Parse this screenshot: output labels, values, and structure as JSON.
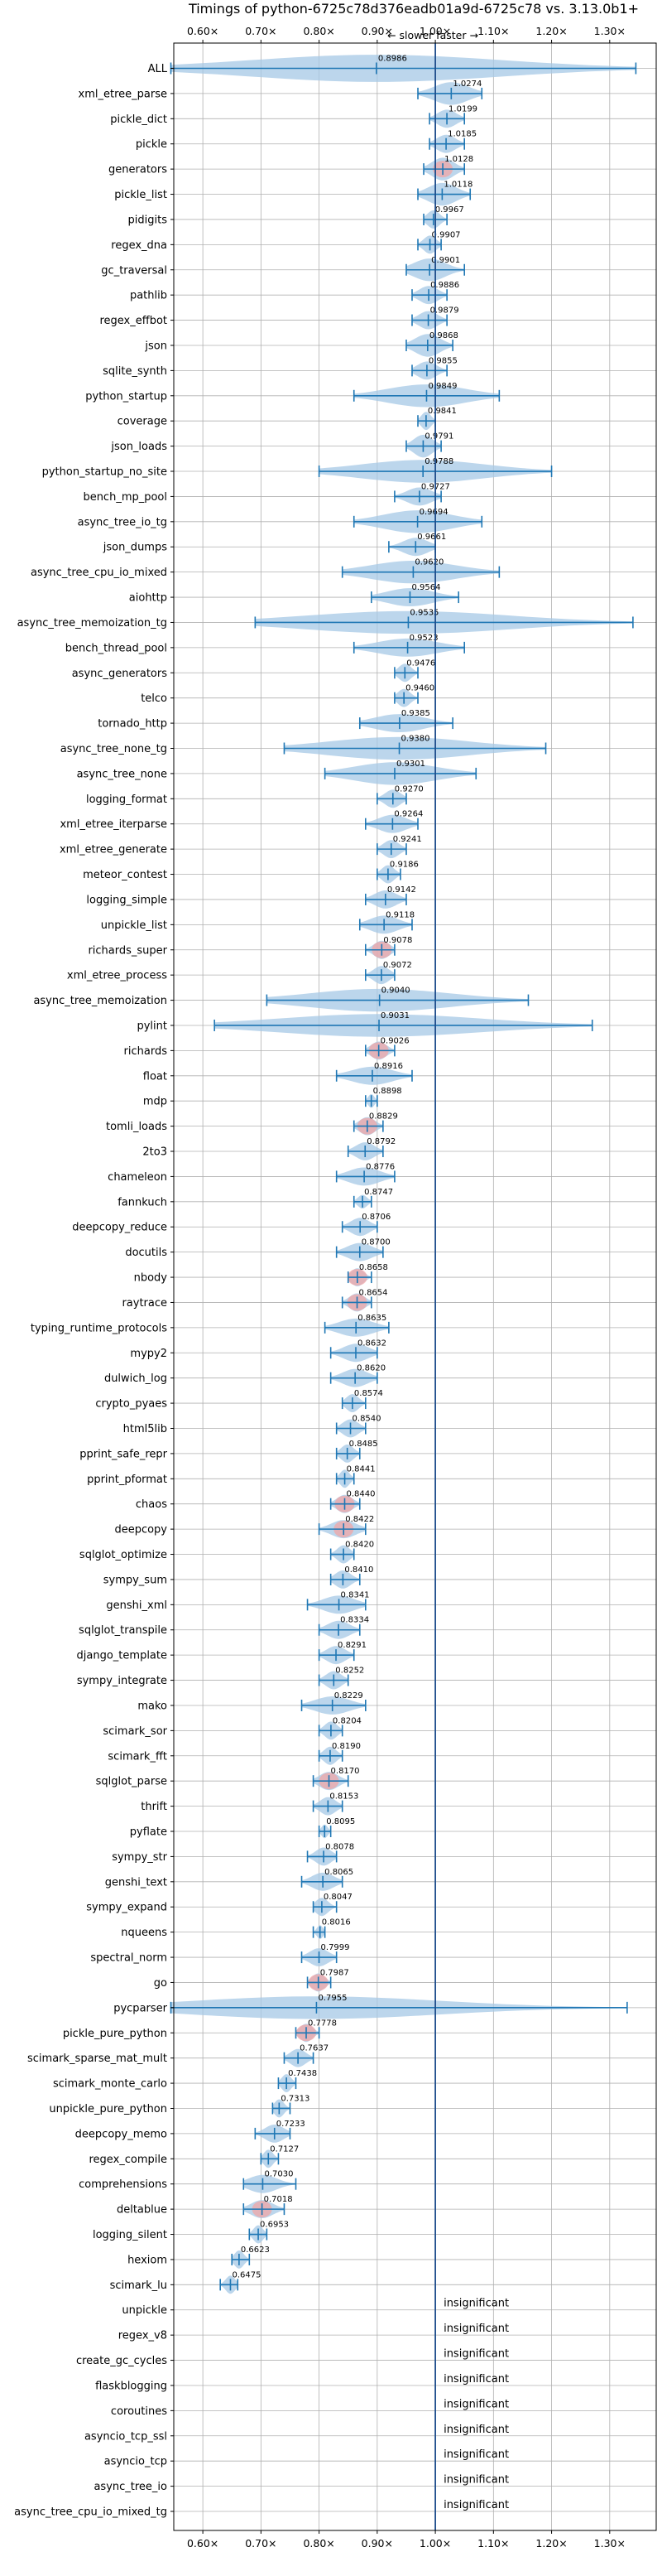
{
  "chart_data": {
    "type": "violin",
    "title": "Timings of python-6725c78d376eadb01a9d-6725c78 vs. 3.13.0b1+",
    "subtitle": "← slower   faster →",
    "xlim": [
      0.55,
      1.38
    ],
    "x_ticks": [
      0.6,
      0.7,
      0.8,
      0.9,
      1.0,
      1.1,
      1.2,
      1.3
    ],
    "x_tick_labels": [
      "0.60×",
      "0.70×",
      "0.80×",
      "0.90×",
      "1.00×",
      "1.10×",
      "1.20×",
      "1.30×"
    ],
    "reference_line": 1.0,
    "grid": true,
    "colors": {
      "violin": "#a6c8e6",
      "errorbar": "#1f77b4",
      "refline": "#1f4e8c",
      "highlight": "#f4a3a3",
      "grid": "#b0b0b0"
    },
    "benchmarks": [
      {
        "name": "ALL",
        "value": 0.8986,
        "lo": 0.545,
        "hi": 1.345,
        "width": 0.6,
        "highlight": false
      },
      {
        "name": "xml_etree_parse",
        "value": 1.0274,
        "lo": 0.97,
        "hi": 1.08,
        "width": 0.5,
        "highlight": false
      },
      {
        "name": "pickle_dict",
        "value": 1.0199,
        "lo": 0.99,
        "hi": 1.05,
        "width": 0.4,
        "highlight": false
      },
      {
        "name": "pickle",
        "value": 1.0185,
        "lo": 0.99,
        "hi": 1.05,
        "width": 0.4,
        "highlight": false
      },
      {
        "name": "generators",
        "value": 1.0128,
        "lo": 0.98,
        "hi": 1.05,
        "width": 0.5,
        "highlight": true
      },
      {
        "name": "pickle_list",
        "value": 1.0118,
        "lo": 0.97,
        "hi": 1.06,
        "width": 0.5,
        "highlight": false
      },
      {
        "name": "pidigits",
        "value": 0.9967,
        "lo": 0.98,
        "hi": 1.02,
        "width": 0.4,
        "highlight": false
      },
      {
        "name": "regex_dna",
        "value": 0.9907,
        "lo": 0.97,
        "hi": 1.01,
        "width": 0.4,
        "highlight": false
      },
      {
        "name": "gc_traversal",
        "value": 0.9901,
        "lo": 0.95,
        "hi": 1.05,
        "width": 0.5,
        "highlight": false
      },
      {
        "name": "pathlib",
        "value": 0.9886,
        "lo": 0.96,
        "hi": 1.02,
        "width": 0.4,
        "highlight": false
      },
      {
        "name": "regex_effbot",
        "value": 0.9879,
        "lo": 0.96,
        "hi": 1.02,
        "width": 0.4,
        "highlight": false
      },
      {
        "name": "json",
        "value": 0.9868,
        "lo": 0.95,
        "hi": 1.03,
        "width": 0.5,
        "highlight": false
      },
      {
        "name": "sqlite_synth",
        "value": 0.9855,
        "lo": 0.96,
        "hi": 1.02,
        "width": 0.4,
        "highlight": false
      },
      {
        "name": "python_startup",
        "value": 0.9849,
        "lo": 0.86,
        "hi": 1.11,
        "width": 0.5,
        "highlight": false
      },
      {
        "name": "coverage",
        "value": 0.9841,
        "lo": 0.97,
        "hi": 1.0,
        "width": 0.4,
        "highlight": false
      },
      {
        "name": "json_loads",
        "value": 0.9791,
        "lo": 0.95,
        "hi": 1.01,
        "width": 0.5,
        "highlight": false
      },
      {
        "name": "python_startup_no_site",
        "value": 0.9788,
        "lo": 0.8,
        "hi": 1.2,
        "width": 0.5,
        "highlight": false
      },
      {
        "name": "bench_mp_pool",
        "value": 0.9727,
        "lo": 0.93,
        "hi": 1.01,
        "width": 0.4,
        "highlight": false
      },
      {
        "name": "async_tree_io_tg",
        "value": 0.9694,
        "lo": 0.86,
        "hi": 1.08,
        "width": 0.5,
        "highlight": false
      },
      {
        "name": "json_dumps",
        "value": 0.9661,
        "lo": 0.92,
        "hi": 1.0,
        "width": 0.4,
        "highlight": false
      },
      {
        "name": "async_tree_cpu_io_mixed",
        "value": 0.962,
        "lo": 0.84,
        "hi": 1.11,
        "width": 0.5,
        "highlight": false
      },
      {
        "name": "aiohttp",
        "value": 0.9564,
        "lo": 0.89,
        "hi": 1.04,
        "width": 0.4,
        "highlight": false
      },
      {
        "name": "async_tree_memoization_tg",
        "value": 0.9535,
        "lo": 0.69,
        "hi": 1.34,
        "width": 0.5,
        "highlight": false
      },
      {
        "name": "bench_thread_pool",
        "value": 0.9523,
        "lo": 0.86,
        "hi": 1.05,
        "width": 0.4,
        "highlight": false
      },
      {
        "name": "async_generators",
        "value": 0.9476,
        "lo": 0.93,
        "hi": 0.97,
        "width": 0.4,
        "highlight": false
      },
      {
        "name": "telco",
        "value": 0.946,
        "lo": 0.93,
        "hi": 0.97,
        "width": 0.4,
        "highlight": false
      },
      {
        "name": "tornado_http",
        "value": 0.9385,
        "lo": 0.87,
        "hi": 1.03,
        "width": 0.4,
        "highlight": false
      },
      {
        "name": "async_tree_none_tg",
        "value": 0.938,
        "lo": 0.74,
        "hi": 1.19,
        "width": 0.5,
        "highlight": false
      },
      {
        "name": "async_tree_none",
        "value": 0.9301,
        "lo": 0.81,
        "hi": 1.07,
        "width": 0.5,
        "highlight": false
      },
      {
        "name": "logging_format",
        "value": 0.927,
        "lo": 0.9,
        "hi": 0.95,
        "width": 0.4,
        "highlight": false
      },
      {
        "name": "xml_etree_iterparse",
        "value": 0.9264,
        "lo": 0.88,
        "hi": 0.97,
        "width": 0.4,
        "highlight": false
      },
      {
        "name": "xml_etree_generate",
        "value": 0.9241,
        "lo": 0.9,
        "hi": 0.95,
        "width": 0.4,
        "highlight": false
      },
      {
        "name": "meteor_contest",
        "value": 0.9186,
        "lo": 0.9,
        "hi": 0.94,
        "width": 0.4,
        "highlight": false
      },
      {
        "name": "logging_simple",
        "value": 0.9142,
        "lo": 0.88,
        "hi": 0.95,
        "width": 0.4,
        "highlight": false
      },
      {
        "name": "unpickle_list",
        "value": 0.9118,
        "lo": 0.87,
        "hi": 0.96,
        "width": 0.4,
        "highlight": false
      },
      {
        "name": "richards_super",
        "value": 0.9078,
        "lo": 0.88,
        "hi": 0.93,
        "width": 0.4,
        "highlight": true
      },
      {
        "name": "xml_etree_process",
        "value": 0.9072,
        "lo": 0.88,
        "hi": 0.93,
        "width": 0.4,
        "highlight": false
      },
      {
        "name": "async_tree_memoization",
        "value": 0.904,
        "lo": 0.71,
        "hi": 1.16,
        "width": 0.5,
        "highlight": false
      },
      {
        "name": "pylint",
        "value": 0.9031,
        "lo": 0.62,
        "hi": 1.27,
        "width": 0.5,
        "highlight": false
      },
      {
        "name": "richards",
        "value": 0.9026,
        "lo": 0.88,
        "hi": 0.93,
        "width": 0.4,
        "highlight": true
      },
      {
        "name": "float",
        "value": 0.8916,
        "lo": 0.83,
        "hi": 0.96,
        "width": 0.4,
        "highlight": false
      },
      {
        "name": "mdp",
        "value": 0.8898,
        "lo": 0.88,
        "hi": 0.9,
        "width": 0.3,
        "highlight": false
      },
      {
        "name": "tomli_loads",
        "value": 0.8829,
        "lo": 0.86,
        "hi": 0.91,
        "width": 0.4,
        "highlight": true
      },
      {
        "name": "2to3",
        "value": 0.8792,
        "lo": 0.85,
        "hi": 0.91,
        "width": 0.4,
        "highlight": false
      },
      {
        "name": "chameleon",
        "value": 0.8776,
        "lo": 0.83,
        "hi": 0.93,
        "width": 0.4,
        "highlight": false
      },
      {
        "name": "fannkuch",
        "value": 0.8747,
        "lo": 0.86,
        "hi": 0.89,
        "width": 0.3,
        "highlight": false
      },
      {
        "name": "deepcopy_reduce",
        "value": 0.8706,
        "lo": 0.84,
        "hi": 0.9,
        "width": 0.4,
        "highlight": false
      },
      {
        "name": "docutils",
        "value": 0.87,
        "lo": 0.83,
        "hi": 0.91,
        "width": 0.4,
        "highlight": false
      },
      {
        "name": "nbody",
        "value": 0.8658,
        "lo": 0.85,
        "hi": 0.89,
        "width": 0.4,
        "highlight": true
      },
      {
        "name": "raytrace",
        "value": 0.8654,
        "lo": 0.84,
        "hi": 0.89,
        "width": 0.4,
        "highlight": true
      },
      {
        "name": "typing_runtime_protocols",
        "value": 0.8635,
        "lo": 0.81,
        "hi": 0.92,
        "width": 0.4,
        "highlight": false
      },
      {
        "name": "mypy2",
        "value": 0.8632,
        "lo": 0.82,
        "hi": 0.9,
        "width": 0.4,
        "highlight": false
      },
      {
        "name": "dulwich_log",
        "value": 0.862,
        "lo": 0.82,
        "hi": 0.9,
        "width": 0.4,
        "highlight": false
      },
      {
        "name": "crypto_pyaes",
        "value": 0.8574,
        "lo": 0.84,
        "hi": 0.88,
        "width": 0.4,
        "highlight": false
      },
      {
        "name": "html5lib",
        "value": 0.854,
        "lo": 0.83,
        "hi": 0.88,
        "width": 0.4,
        "highlight": false
      },
      {
        "name": "pprint_safe_repr",
        "value": 0.8485,
        "lo": 0.83,
        "hi": 0.87,
        "width": 0.4,
        "highlight": false
      },
      {
        "name": "pprint_pformat",
        "value": 0.8441,
        "lo": 0.83,
        "hi": 0.86,
        "width": 0.4,
        "highlight": false
      },
      {
        "name": "chaos",
        "value": 0.844,
        "lo": 0.82,
        "hi": 0.87,
        "width": 0.4,
        "highlight": true
      },
      {
        "name": "deepcopy",
        "value": 0.8422,
        "lo": 0.8,
        "hi": 0.88,
        "width": 0.4,
        "highlight": true
      },
      {
        "name": "sqlglot_optimize",
        "value": 0.842,
        "lo": 0.82,
        "hi": 0.86,
        "width": 0.4,
        "highlight": false
      },
      {
        "name": "sympy_sum",
        "value": 0.841,
        "lo": 0.82,
        "hi": 0.87,
        "width": 0.4,
        "highlight": false
      },
      {
        "name": "genshi_xml",
        "value": 0.8341,
        "lo": 0.78,
        "hi": 0.88,
        "width": 0.4,
        "highlight": false
      },
      {
        "name": "sqlglot_transpile",
        "value": 0.8334,
        "lo": 0.8,
        "hi": 0.87,
        "width": 0.4,
        "highlight": false
      },
      {
        "name": "django_template",
        "value": 0.8291,
        "lo": 0.8,
        "hi": 0.86,
        "width": 0.4,
        "highlight": false
      },
      {
        "name": "sympy_integrate",
        "value": 0.8252,
        "lo": 0.8,
        "hi": 0.85,
        "width": 0.4,
        "highlight": false
      },
      {
        "name": "mako",
        "value": 0.8229,
        "lo": 0.77,
        "hi": 0.88,
        "width": 0.4,
        "highlight": false
      },
      {
        "name": "scimark_sor",
        "value": 0.8204,
        "lo": 0.8,
        "hi": 0.84,
        "width": 0.4,
        "highlight": false
      },
      {
        "name": "scimark_fft",
        "value": 0.819,
        "lo": 0.8,
        "hi": 0.84,
        "width": 0.4,
        "highlight": false
      },
      {
        "name": "sqlglot_parse",
        "value": 0.817,
        "lo": 0.79,
        "hi": 0.85,
        "width": 0.4,
        "highlight": true
      },
      {
        "name": "thrift",
        "value": 0.8153,
        "lo": 0.79,
        "hi": 0.84,
        "width": 0.4,
        "highlight": false
      },
      {
        "name": "pyflate",
        "value": 0.8095,
        "lo": 0.8,
        "hi": 0.82,
        "width": 0.3,
        "highlight": false
      },
      {
        "name": "sympy_str",
        "value": 0.8078,
        "lo": 0.78,
        "hi": 0.83,
        "width": 0.4,
        "highlight": false
      },
      {
        "name": "genshi_text",
        "value": 0.8065,
        "lo": 0.77,
        "hi": 0.84,
        "width": 0.4,
        "highlight": false
      },
      {
        "name": "sympy_expand",
        "value": 0.8047,
        "lo": 0.79,
        "hi": 0.83,
        "width": 0.4,
        "highlight": false
      },
      {
        "name": "nqueens",
        "value": 0.8016,
        "lo": 0.79,
        "hi": 0.81,
        "width": 0.3,
        "highlight": false
      },
      {
        "name": "spectral_norm",
        "value": 0.7999,
        "lo": 0.77,
        "hi": 0.83,
        "width": 0.4,
        "highlight": false
      },
      {
        "name": "go",
        "value": 0.7987,
        "lo": 0.78,
        "hi": 0.82,
        "width": 0.4,
        "highlight": true
      },
      {
        "name": "pycparser",
        "value": 0.7955,
        "lo": 0.545,
        "hi": 1.33,
        "width": 0.5,
        "highlight": false
      },
      {
        "name": "pickle_pure_python",
        "value": 0.7778,
        "lo": 0.76,
        "hi": 0.8,
        "width": 0.4,
        "highlight": true
      },
      {
        "name": "scimark_sparse_mat_mult",
        "value": 0.7637,
        "lo": 0.74,
        "hi": 0.79,
        "width": 0.4,
        "highlight": false
      },
      {
        "name": "scimark_monte_carlo",
        "value": 0.7438,
        "lo": 0.73,
        "hi": 0.76,
        "width": 0.4,
        "highlight": false
      },
      {
        "name": "unpickle_pure_python",
        "value": 0.7313,
        "lo": 0.72,
        "hi": 0.75,
        "width": 0.4,
        "highlight": false
      },
      {
        "name": "deepcopy_memo",
        "value": 0.7233,
        "lo": 0.69,
        "hi": 0.75,
        "width": 0.4,
        "highlight": false
      },
      {
        "name": "regex_compile",
        "value": 0.7127,
        "lo": 0.7,
        "hi": 0.73,
        "width": 0.4,
        "highlight": false
      },
      {
        "name": "comprehensions",
        "value": 0.703,
        "lo": 0.67,
        "hi": 0.76,
        "width": 0.4,
        "highlight": false
      },
      {
        "name": "deltablue",
        "value": 0.7018,
        "lo": 0.67,
        "hi": 0.74,
        "width": 0.4,
        "highlight": true
      },
      {
        "name": "logging_silent",
        "value": 0.6953,
        "lo": 0.68,
        "hi": 0.71,
        "width": 0.4,
        "highlight": false
      },
      {
        "name": "hexiom",
        "value": 0.6623,
        "lo": 0.65,
        "hi": 0.68,
        "width": 0.4,
        "highlight": false
      },
      {
        "name": "scimark_lu",
        "value": 0.6475,
        "lo": 0.63,
        "hi": 0.66,
        "width": 0.4,
        "highlight": false
      }
    ],
    "insignificant": [
      "unpickle",
      "regex_v8",
      "create_gc_cycles",
      "flaskblogging",
      "coroutines",
      "asyncio_tcp_ssl",
      "asyncio_tcp",
      "async_tree_io",
      "async_tree_cpu_io_mixed_tg"
    ],
    "insignificant_label": "insignificant"
  }
}
